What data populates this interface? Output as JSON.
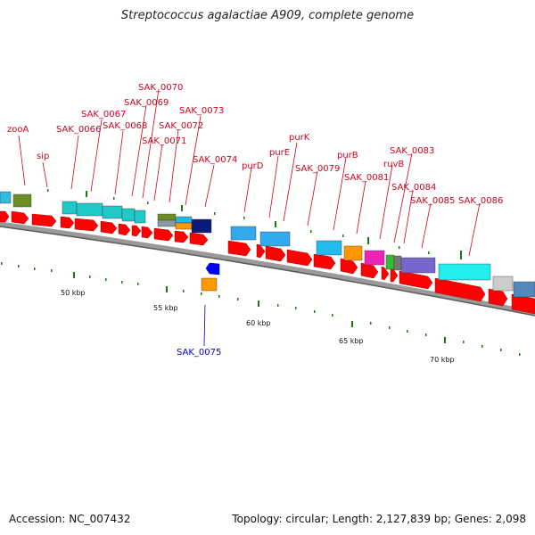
{
  "title": "Streptococcus agalactiae A909, complete genome",
  "footer": {
    "accession": "Accession: NC_007432",
    "summary": "Topology: circular; Length: 2,127,839 bp; Genes: 2,098"
  },
  "colors": {
    "forward_cds": "#ff0000",
    "reverse_cds": "#0000ff",
    "gene_label": "#d0021b",
    "reverse_label": "#0000cc",
    "ruler_tick": "#1a7a1a",
    "backbone": "#808080"
  },
  "gene_labels": [
    {
      "id": "zooA",
      "text": "zooA"
    },
    {
      "id": "sip",
      "text": "sip"
    },
    {
      "id": "sak_0066",
      "text": "SAK_0066"
    },
    {
      "id": "sak_0067",
      "text": "SAK_0067"
    },
    {
      "id": "sak_0068",
      "text": "SAK_0068"
    },
    {
      "id": "sak_0069",
      "text": "SAK_0069"
    },
    {
      "id": "sak_0070",
      "text": "SAK_0070"
    },
    {
      "id": "sak_0071",
      "text": "SAK_0071"
    },
    {
      "id": "sak_0072",
      "text": "SAK_0072"
    },
    {
      "id": "sak_0073",
      "text": "SAK_0073"
    },
    {
      "id": "sak_0074",
      "text": "SAK_0074"
    },
    {
      "id": "purD",
      "text": "purD"
    },
    {
      "id": "purE",
      "text": "purE"
    },
    {
      "id": "purK",
      "text": "purK"
    },
    {
      "id": "sak_0079",
      "text": "SAK_0079"
    },
    {
      "id": "purB",
      "text": "purB"
    },
    {
      "id": "sak_0081",
      "text": "SAK_0081"
    },
    {
      "id": "ruvB",
      "text": "ruvB"
    },
    {
      "id": "sak_0083",
      "text": "SAK_0083"
    },
    {
      "id": "sak_0084",
      "text": "SAK_0084"
    },
    {
      "id": "sak_0085",
      "text": "SAK_0085"
    },
    {
      "id": "sak_0086",
      "text": "SAK_0086"
    }
  ],
  "reverse_label": {
    "id": "sak_0075",
    "text": "SAK_0075"
  },
  "ruler_labels": [
    {
      "id": "50",
      "text": "50 kbp"
    },
    {
      "id": "55",
      "text": "55 kbp"
    },
    {
      "id": "60",
      "text": "60 kbp"
    },
    {
      "id": "65",
      "text": "65 kbp"
    },
    {
      "id": "70",
      "text": "70 kbp"
    }
  ]
}
